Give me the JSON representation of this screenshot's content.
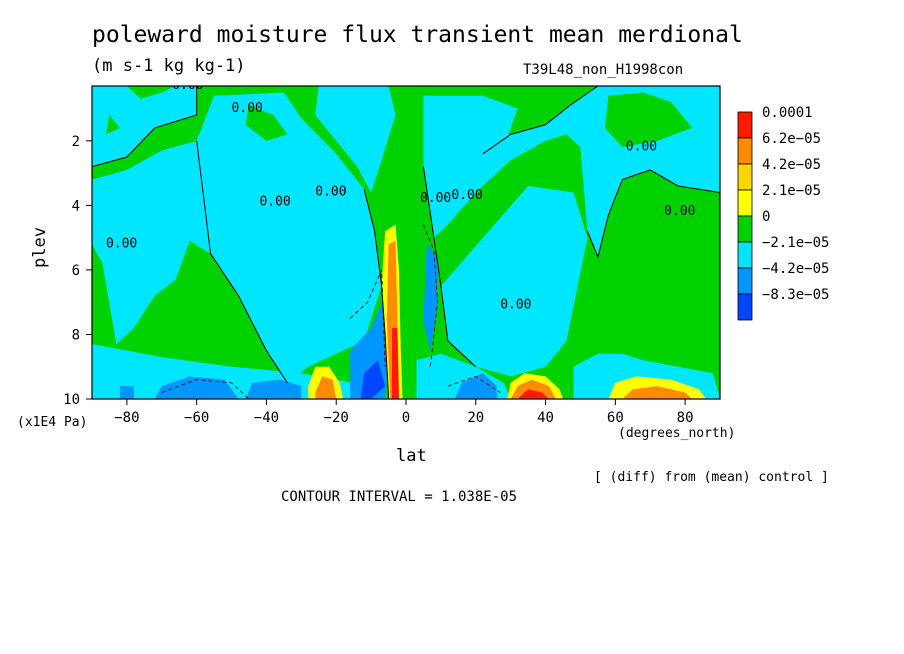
{
  "title": "poleward moisture flux transient mean merdional",
  "units": "(m s-1 kg kg-1)",
  "run_label": "T39L48_non_H1998con",
  "y_scale_label": "(x1E4 Pa)",
  "x_units_label": "(degrees_north)",
  "diff_label": "[ (diff) from (mean) control ]",
  "contour_interval_label": "CONTOUR INTERVAL = 1.038E-05",
  "chart_data": {
    "type": "heatmap",
    "title": "poleward moisture flux transient mean merdional",
    "xlabel": "lat",
    "ylabel": "plev",
    "xlim": [
      -90,
      90
    ],
    "ylim": [
      0.3,
      10
    ],
    "y_inverted": true,
    "x_ticks": [
      -80,
      -60,
      -40,
      -20,
      0,
      20,
      40,
      60,
      80
    ],
    "y_ticks": [
      2,
      4,
      6,
      8,
      10
    ],
    "contour_labels": [
      "0.00",
      "0.00",
      "0.00",
      "0.00",
      "0.00",
      "0.00",
      "0.00",
      "0.00",
      "0.00",
      "0.00"
    ],
    "colorbar": {
      "labels": [
        "0.0001",
        "6.2e-05",
        "4.2e-05",
        "2.1e-05",
        "0",
        "-2.1e-05",
        "-4.2e-05",
        "-8.3e-05"
      ],
      "colors": [
        "#ff1a00",
        "#ff8c00",
        "#ffd400",
        "#ffff00",
        "#00d200",
        "#00e6ff",
        "#0096ff",
        "#0046ff"
      ]
    },
    "field_colors": {
      "strong_positive": "#ff1a00",
      "positive": "#ff8c00",
      "weak_positive": "#ffff00",
      "near_zero_positive": "#00d200",
      "near_zero_negative": "#00e6ff",
      "negative": "#0096ff",
      "strong_negative": "#0046ff"
    }
  }
}
